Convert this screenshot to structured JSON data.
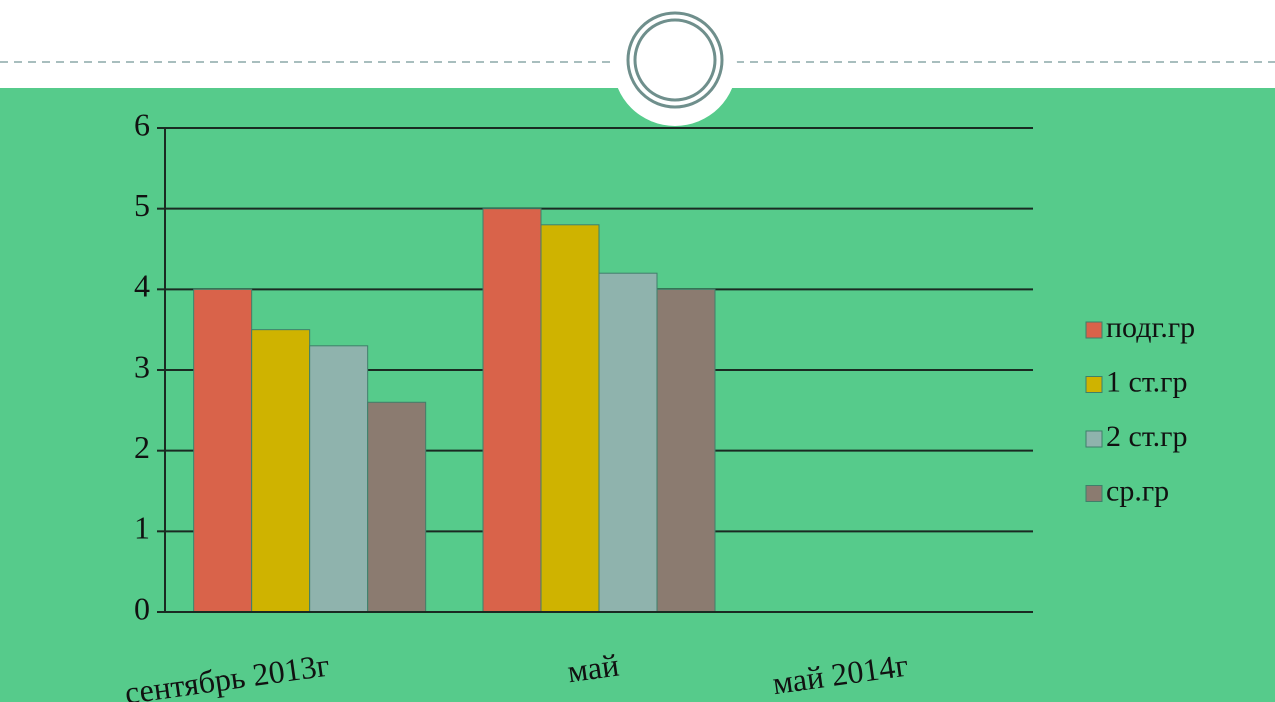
{
  "chart_data": {
    "type": "bar",
    "categories": [
      "сентябрь 2013г",
      "май",
      "май 2014г"
    ],
    "series": [
      {
        "name": "подг.гр",
        "color": "#d9634a",
        "values": [
          4,
          5,
          null
        ]
      },
      {
        "name": "1 ст.гр",
        "color": "#cfb300",
        "values": [
          3.5,
          4.8,
          null
        ]
      },
      {
        "name": "2 ст.гр",
        "color": "#8fb3ad",
        "values": [
          3.3,
          4.2,
          null
        ]
      },
      {
        "name": "ср.гр",
        "color": "#8b7b70",
        "values": [
          2.6,
          4,
          null
        ]
      }
    ],
    "ylim": [
      0,
      6
    ],
    "yticks": [
      0,
      1,
      2,
      3,
      4,
      5,
      6
    ],
    "grid": true,
    "legend": "right"
  }
}
